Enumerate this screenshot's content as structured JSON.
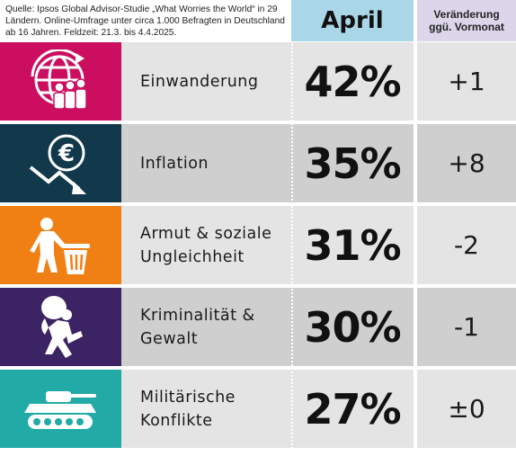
{
  "source_text": "Quelle: Ipsos Global Advisor-Studie „What Worries the World“ in 29 Ländern. Online-Umfrage unter circa 1.000 Befragten in Deutschland ab 16 Jahren. Feldzeit: 21.3. bis 4.4.2025.",
  "header": {
    "april": "April",
    "change": "Veränderung\nggü. Vormonat"
  },
  "colors": {
    "april_header": "#a9d7e8",
    "change_header": "#dcd6ea",
    "row_light": "#e4e4e4",
    "row_dark": "#cfcfcf"
  },
  "chart_data": {
    "type": "table",
    "columns": [
      "",
      "April",
      "Veränderung ggü. Vormonat"
    ],
    "rows": [
      {
        "label": "Einwanderung",
        "value": 42,
        "value_text": "42%",
        "change_text": "+1",
        "change": 1,
        "icon": "globe-migration-icon",
        "icon_color": "#cc0e60"
      },
      {
        "label": "Inflation",
        "value": 35,
        "value_text": "35%",
        "change_text": "+8",
        "change": 8,
        "icon": "euro-falling-arrow-icon",
        "icon_color": "#12384b"
      },
      {
        "label": "Armut & soziale\nUngleichheit",
        "value": 31,
        "value_text": "31%",
        "change_text": "-2",
        "change": -2,
        "icon": "person-trash-bin-icon",
        "icon_color": "#f07f14"
      },
      {
        "label": "Kriminalität &\nGewalt",
        "value": 30,
        "value_text": "30%",
        "change_text": "-1",
        "change": -1,
        "icon": "thief-with-bag-icon",
        "icon_color": "#3b2364"
      },
      {
        "label": "Militärische\nKonflikte",
        "value": 27,
        "value_text": "27%",
        "change_text": "±0",
        "change": 0,
        "icon": "tank-icon",
        "icon_color": "#21aaa6"
      }
    ]
  }
}
